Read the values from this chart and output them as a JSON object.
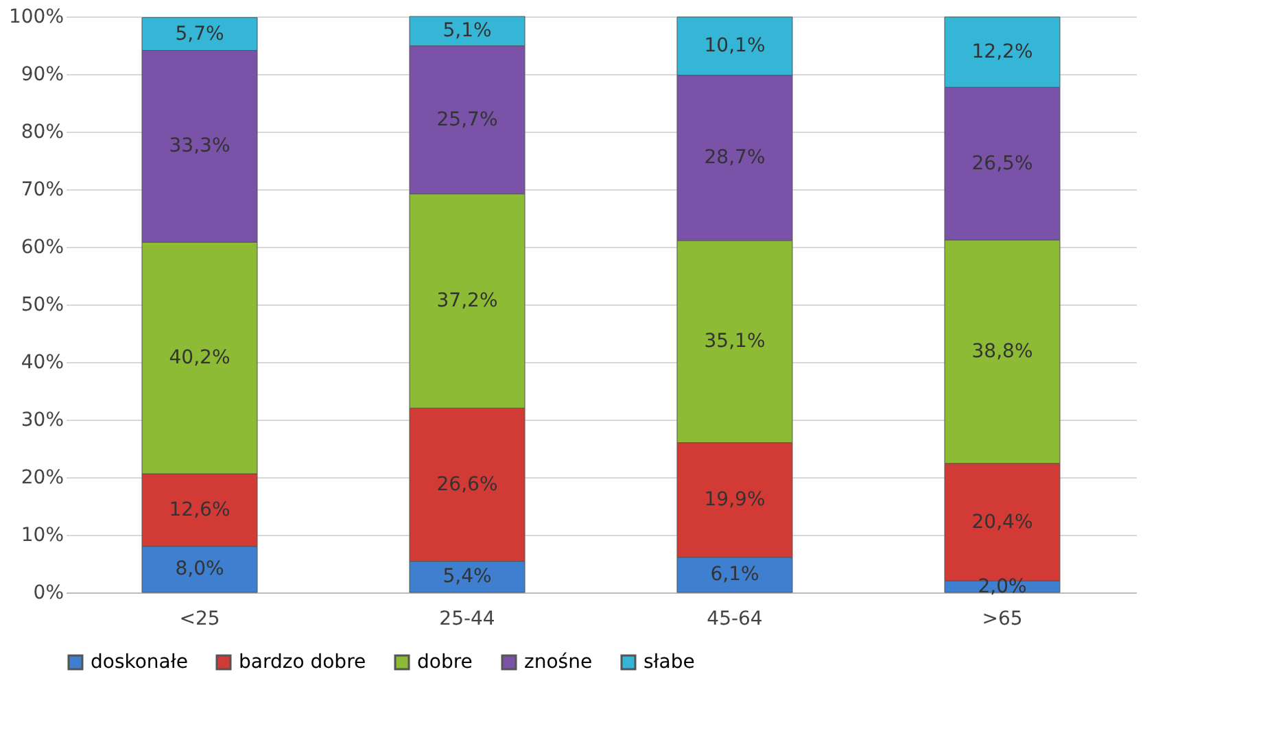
{
  "chart_data": {
    "type": "bar",
    "stacked": true,
    "categories": [
      "<25",
      "25-44",
      "45-64",
      ">65"
    ],
    "series": [
      {
        "name": "doskonałe",
        "color": "#3f7fcf",
        "values": [
          8.0,
          5.4,
          6.1,
          2.0
        ],
        "value_labels": [
          "8,0%",
          "5,4%",
          "6,1%",
          "2,0%"
        ]
      },
      {
        "name": "bardzo dobre",
        "color": "#d23a35",
        "values": [
          12.6,
          26.6,
          19.9,
          20.4
        ],
        "value_labels": [
          "12,6%",
          "26,6%",
          "19,9%",
          "20,4%"
        ]
      },
      {
        "name": "dobre",
        "color": "#8dbb35",
        "values": [
          40.2,
          37.2,
          35.1,
          38.8
        ],
        "value_labels": [
          "40,2%",
          "37,2%",
          "35,1%",
          "38,8%"
        ]
      },
      {
        "name": "znośne",
        "color": "#7a52a8",
        "values": [
          33.3,
          25.7,
          28.7,
          26.5
        ],
        "value_labels": [
          "33,3%",
          "25,7%",
          "28,7%",
          "26,5%"
        ]
      },
      {
        "name": "słabe",
        "color": "#35b6d6",
        "values": [
          5.7,
          5.1,
          10.1,
          12.2
        ],
        "value_labels": [
          "5,7%",
          "5,1%",
          "10,1%",
          "12,2%"
        ]
      }
    ],
    "ylim": [
      0,
      100
    ],
    "yticks": [
      {
        "value": 0,
        "label": "0%"
      },
      {
        "value": 10,
        "label": "10%"
      },
      {
        "value": 20,
        "label": "20%"
      },
      {
        "value": 30,
        "label": "30%"
      },
      {
        "value": 40,
        "label": "40%"
      },
      {
        "value": 50,
        "label": "50%"
      },
      {
        "value": 60,
        "label": "60%"
      },
      {
        "value": 70,
        "label": "70%"
      },
      {
        "value": 80,
        "label": "80%"
      },
      {
        "value": 90,
        "label": "90%"
      },
      {
        "value": 100,
        "label": "100%"
      }
    ],
    "grid": "y",
    "legend": "bottom"
  }
}
